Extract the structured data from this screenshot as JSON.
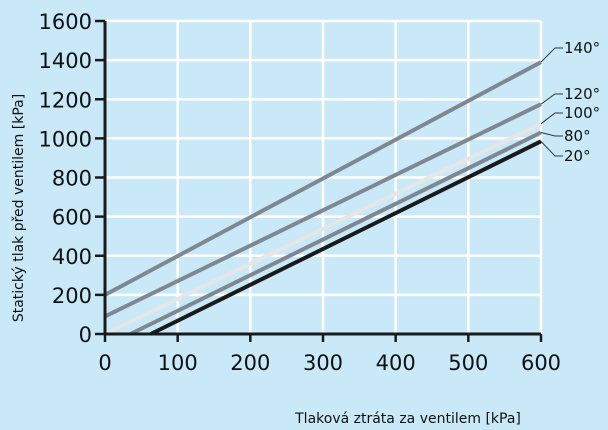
{
  "chart_data": {
    "type": "line",
    "title": "",
    "xlabel": "Tlaková ztráta za ventilem [kPa]",
    "ylabel": "Statický tlak před ventilem [kPa]",
    "xlim": [
      0,
      600
    ],
    "ylim": [
      0,
      1600
    ],
    "x_ticks": [
      "0",
      "100",
      "200",
      "300",
      "400",
      "500",
      "600"
    ],
    "y_ticks": [
      "0",
      "200",
      "400",
      "600",
      "800",
      "1000",
      "1200",
      "1400",
      "1600"
    ],
    "grid": true,
    "series": [
      {
        "name": "140°",
        "x": [
          0,
          600
        ],
        "y": [
          200,
          1390
        ],
        "color": "#7f8790"
      },
      {
        "name": "120°",
        "x": [
          0,
          600
        ],
        "y": [
          90,
          1175
        ],
        "color": "#7f8790"
      },
      {
        "name": "100°",
        "x": [
          0,
          600
        ],
        "y": [
          0,
          1075
        ],
        "color": "#e6e6e6"
      },
      {
        "name": "80°",
        "x": [
          35,
          600
        ],
        "y": [
          0,
          1030
        ],
        "color": "#7f8790"
      },
      {
        "name": "20°",
        "x": [
          63,
          600
        ],
        "y": [
          0,
          985
        ],
        "color": "#1a1a1a"
      }
    ],
    "colors": {
      "background": "#c9e9f8",
      "grid": "#ffffff",
      "axis": "#1a1a1a"
    }
  }
}
